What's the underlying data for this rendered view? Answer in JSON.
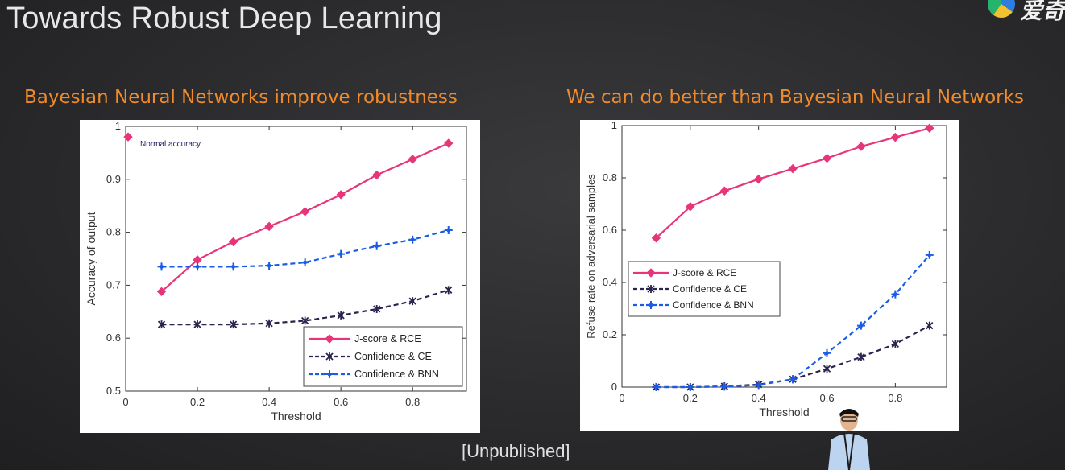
{
  "slide": {
    "title": "Towards Robust Deep Learning",
    "footer": "[Unpublished]",
    "logo_text": "爱奇"
  },
  "colors": {
    "heading": "#f08a2a",
    "jscore_rce": "#e8357a",
    "confidence_ce": "#2a2550",
    "confidence_bnn": "#1a5ce8"
  },
  "chart_data": [
    {
      "type": "line",
      "title": "Bayesian Neural Networks improve robustness",
      "xlabel": "Threshold",
      "ylabel": "Accuracy of output",
      "xlim": [
        0,
        0.95
      ],
      "ylim": [
        0.5,
        1
      ],
      "xticks": [
        0,
        0.2,
        0.4,
        0.6,
        0.8
      ],
      "yticks": [
        0.5,
        0.6,
        0.7,
        0.8,
        0.9,
        1
      ],
      "xtick_labels": [
        "0",
        "0.2",
        "0.4",
        "0.6",
        "0.8"
      ],
      "ytick_labels": [
        "0.5",
        "0.6",
        "0.7",
        "0.8",
        "0.9",
        "1"
      ],
      "annotation": {
        "text": "Normal accuracy",
        "x": 0,
        "y": 0.98
      },
      "legend_position": "bottom-right",
      "x": [
        0.1,
        0.2,
        0.3,
        0.4,
        0.5,
        0.6,
        0.7,
        0.8,
        0.9
      ],
      "series": [
        {
          "name": "J-score & RCE",
          "values": [
            0.688,
            0.748,
            0.782,
            0.811,
            0.839,
            0.871,
            0.908,
            0.938,
            0.968
          ]
        },
        {
          "name": "Confidence & CE",
          "values": [
            0.626,
            0.626,
            0.626,
            0.628,
            0.633,
            0.643,
            0.655,
            0.67,
            0.691
          ]
        },
        {
          "name": "Confidence & BNN",
          "values": [
            0.735,
            0.735,
            0.735,
            0.737,
            0.743,
            0.759,
            0.774,
            0.786,
            0.804
          ]
        }
      ]
    },
    {
      "type": "line",
      "title": "We can do better than Bayesian Neural Networks",
      "xlabel": "Threshold",
      "ylabel": "Refuse rate on adversarial samples",
      "xlim": [
        0,
        0.95
      ],
      "ylim": [
        0,
        1
      ],
      "xticks": [
        0,
        0.2,
        0.4,
        0.6,
        0.8
      ],
      "yticks": [
        0,
        0.2,
        0.4,
        0.6,
        0.8,
        1
      ],
      "xtick_labels": [
        "0",
        "0.2",
        "0.4",
        "0.6",
        "0.8"
      ],
      "ytick_labels": [
        "0",
        "0.2",
        "0.4",
        "0.6",
        "0.8",
        "1"
      ],
      "legend_position": "middle-left",
      "x": [
        0.1,
        0.2,
        0.3,
        0.4,
        0.5,
        0.6,
        0.7,
        0.8,
        0.9
      ],
      "series": [
        {
          "name": "J-score & RCE",
          "values": [
            0.57,
            0.69,
            0.75,
            0.795,
            0.835,
            0.875,
            0.92,
            0.955,
            0.99
          ]
        },
        {
          "name": "Confidence & CE",
          "values": [
            0.0,
            0.0,
            0.003,
            0.01,
            0.03,
            0.07,
            0.115,
            0.165,
            0.235
          ]
        },
        {
          "name": "Confidence & BNN",
          "values": [
            0.0,
            0.0,
            0.002,
            0.008,
            0.03,
            0.13,
            0.235,
            0.355,
            0.505
          ]
        }
      ]
    }
  ]
}
